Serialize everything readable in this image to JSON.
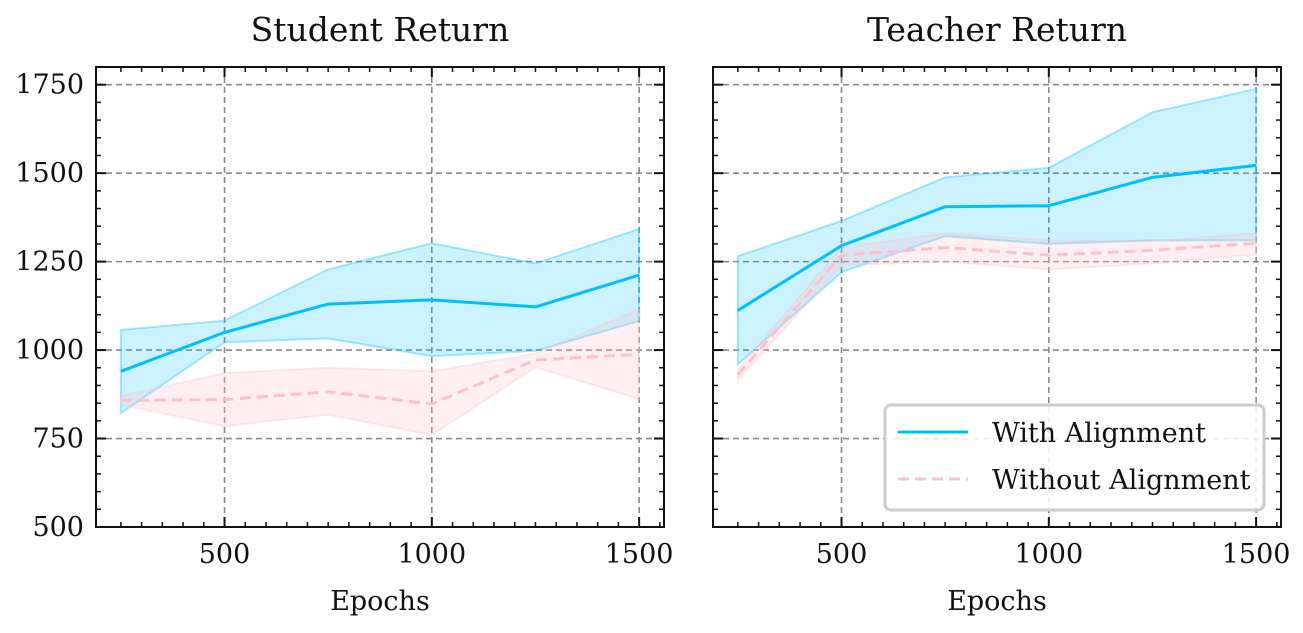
{
  "chart_data": [
    {
      "type": "line",
      "title": "Student Return",
      "xlabel": "Epochs",
      "ylabel": "",
      "xlim": [
        190,
        1560
      ],
      "ylim": [
        500,
        1800
      ],
      "xticks": [
        500,
        1000,
        1500
      ],
      "yticks": [
        500,
        750,
        1000,
        1250,
        1500,
        1750
      ],
      "xtick_labels": [
        "500",
        "1000",
        "1500"
      ],
      "ytick_labels": [
        "500",
        "750",
        "1000",
        "1250",
        "1500",
        "1750"
      ],
      "grid": true,
      "x": [
        250,
        500,
        750,
        1000,
        1250,
        1500
      ],
      "series": [
        {
          "name": "With Alignment",
          "color": "#00BFFF",
          "dash": "solid",
          "values": [
            940,
            1050,
            1130,
            1142,
            1122,
            1212
          ],
          "upper": [
            1057,
            1083,
            1228,
            1302,
            1245,
            1342
          ],
          "lower": [
            822,
            1022,
            1033,
            983,
            998,
            1082
          ]
        },
        {
          "name": "Without Alignment",
          "color": "#FFC0CB",
          "dash": "dashed",
          "values": [
            858,
            860,
            882,
            848,
            972,
            988
          ],
          "upper": [
            870,
            935,
            950,
            940,
            990,
            1115
          ],
          "lower": [
            846,
            785,
            818,
            760,
            952,
            862
          ]
        }
      ]
    },
    {
      "type": "line",
      "title": "Teacher Return",
      "xlabel": "Epochs",
      "ylabel": "",
      "xlim": [
        190,
        1560
      ],
      "ylim": [
        500,
        1800
      ],
      "xticks": [
        500,
        1000,
        1500
      ],
      "yticks": [
        500,
        750,
        1000,
        1250,
        1500,
        1750
      ],
      "xtick_labels": [
        "500",
        "1000",
        "1500"
      ],
      "ytick_labels": [
        "",
        "",
        "",
        "",
        "",
        ""
      ],
      "grid": true,
      "legend_position": "lower-right",
      "x": [
        250,
        500,
        750,
        1000,
        1250,
        1500
      ],
      "series": [
        {
          "name": "With Alignment",
          "color": "#00BFFF",
          "dash": "solid",
          "values": [
            1112,
            1295,
            1405,
            1408,
            1488,
            1522
          ],
          "upper": [
            1265,
            1365,
            1488,
            1515,
            1672,
            1738
          ],
          "lower": [
            960,
            1220,
            1322,
            1300,
            1310,
            1310
          ]
        },
        {
          "name": "Without Alignment",
          "color": "#FFC0CB",
          "dash": "dashed",
          "values": [
            930,
            1268,
            1290,
            1268,
            1282,
            1302
          ],
          "upper": [
            945,
            1290,
            1330,
            1310,
            1308,
            1330
          ],
          "lower": [
            915,
            1240,
            1250,
            1228,
            1245,
            1270
          ]
        }
      ]
    }
  ],
  "legend": {
    "items": [
      {
        "label": "With Alignment",
        "color": "#00BFFF",
        "dash": "solid"
      },
      {
        "label": "Without Alignment",
        "color": "#FFC0CB",
        "dash": "dashed"
      }
    ]
  }
}
